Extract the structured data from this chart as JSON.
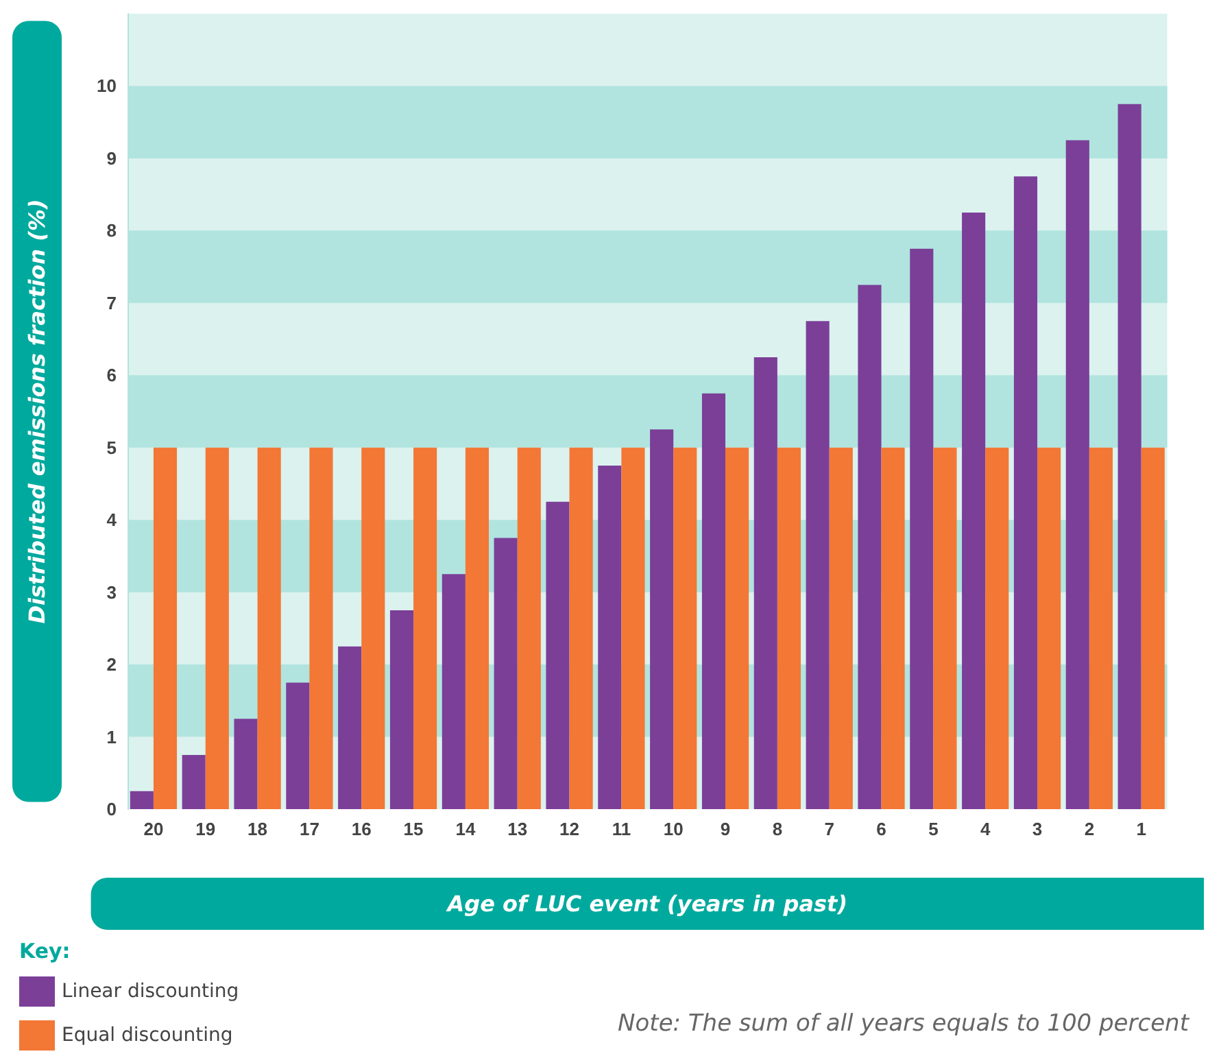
{
  "chart_data": {
    "type": "bar",
    "categories": [
      "20",
      "19",
      "18",
      "17",
      "16",
      "15",
      "14",
      "13",
      "12",
      "11",
      "10",
      "9",
      "8",
      "7",
      "6",
      "5",
      "4",
      "3",
      "2",
      "1"
    ],
    "series": [
      {
        "name": "Linear discounting",
        "color": "#7b3f98",
        "values": [
          0.25,
          0.75,
          1.25,
          1.75,
          2.25,
          2.75,
          3.25,
          3.75,
          4.25,
          4.75,
          5.25,
          5.75,
          6.25,
          6.75,
          7.25,
          7.75,
          8.25,
          8.75,
          9.25,
          9.75
        ]
      },
      {
        "name": "Equal discounting",
        "color": "#f37735",
        "values": [
          5,
          5,
          5,
          5,
          5,
          5,
          5,
          5,
          5,
          5,
          5,
          5,
          5,
          5,
          5,
          5,
          5,
          5,
          5,
          5
        ]
      }
    ],
    "xlabel": "Age of LUC event (years in past)",
    "ylabel": "Distributed emissions fraction (%)",
    "legend_title": "Key:",
    "legend": "bottom left",
    "ylim": [
      0,
      11
    ],
    "yticks": [
      0,
      1,
      2,
      3,
      4,
      5,
      6,
      7,
      8,
      9,
      10
    ],
    "bands": [
      {
        "axis": "y",
        "from": 1,
        "to": 2,
        "color": "#b1e4df"
      },
      {
        "axis": "y",
        "from": 3,
        "to": 4,
        "color": "#b1e4df"
      },
      {
        "axis": "y",
        "from": 5,
        "to": 6,
        "color": "#b1e4df"
      },
      {
        "axis": "y",
        "from": 7,
        "to": 8,
        "color": "#b1e4df"
      },
      {
        "axis": "y",
        "from": 9,
        "to": 10,
        "color": "#b1e4df"
      }
    ],
    "annotations": [
      "Note: The sum of all years equals to 100 percent"
    ]
  }
}
